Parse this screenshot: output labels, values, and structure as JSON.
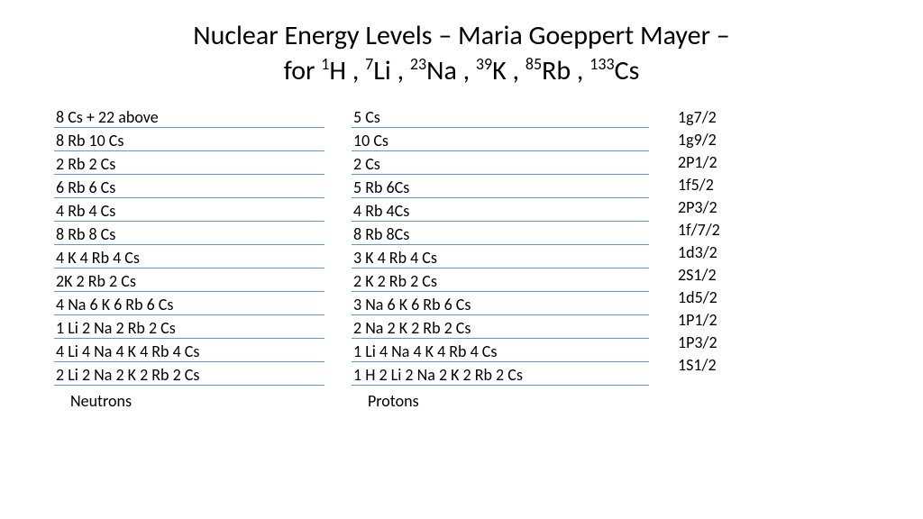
{
  "title_part1": "Nuclear Energy Levels – Maria Goeppert Mayer –",
  "title_part2_prefix": "for ",
  "isotopes": [
    {
      "mass": "1",
      "symbol": "H"
    },
    {
      "mass": "7",
      "symbol": "Li"
    },
    {
      "mass": "23",
      "symbol": "Na"
    },
    {
      "mass": "39",
      "symbol": "K"
    },
    {
      "mass": "85",
      "symbol": "Rb"
    },
    {
      "mass": "133",
      "symbol": "Cs"
    }
  ],
  "neutrons_label": "Neutrons",
  "protons_label": "Protons",
  "neutrons": [
    "8 Cs  + 22 above",
    "8 Rb  10 Cs",
    "2 Rb  2 Cs",
    "6 Rb  6 Cs",
    "4 Rb  4 Cs",
    "8 Rb  8 Cs",
    "4 K  4 Rb  4 Cs",
    "2K  2 Rb  2 Cs",
    "4 Na  6 K  6 Rb  6 Cs",
    "1 Li  2 Na  2 Rb  2 Cs",
    "4 Li  4 Na  4 K  4 Rb  4 Cs",
    "2 Li  2 Na  2 K  2 Rb  2 Cs"
  ],
  "protons": [
    " 5 Cs",
    " 10 Cs",
    " 2 Cs",
    " 5 Rb 6Cs",
    "  4 Rb 4Cs",
    " 8 Rb  8Cs",
    "  3 K  4 Rb  4 Cs",
    "  2 K  2 Rb  2 Cs",
    "   3 Na  6 K  6 Rb  6 Cs",
    "  2 Na  2 K  2 Rb  2 Cs",
    " 1 Li  4 Na  4 K  4 Rb  4 Cs",
    "  1 H  2 Li  2 Na 2 K  2 Rb 2 Cs"
  ],
  "orbitals": [
    "1g7/2",
    "1g9/2",
    "2P1/2",
    "1f5/2",
    "2P3/2",
    "1f/7/2",
    "1d3/2",
    "2S1/2",
    "1d5/2",
    "1P1/2",
    " 1P3/2",
    "1S1/2"
  ],
  "neutron_underlined_rows": [
    0,
    1,
    2,
    3,
    4,
    5,
    6,
    7,
    8,
    9,
    10,
    11
  ],
  "proton_underlined_rows": [
    0,
    1,
    2,
    3,
    4,
    5,
    6,
    7,
    8,
    9,
    10,
    11
  ],
  "colors": {
    "background": "#ffffff",
    "text": "#000000",
    "underline": "#5b9bd5"
  },
  "font": {
    "family": "Calibri",
    "title_size_pt": 30,
    "body_size_pt": 18
  }
}
